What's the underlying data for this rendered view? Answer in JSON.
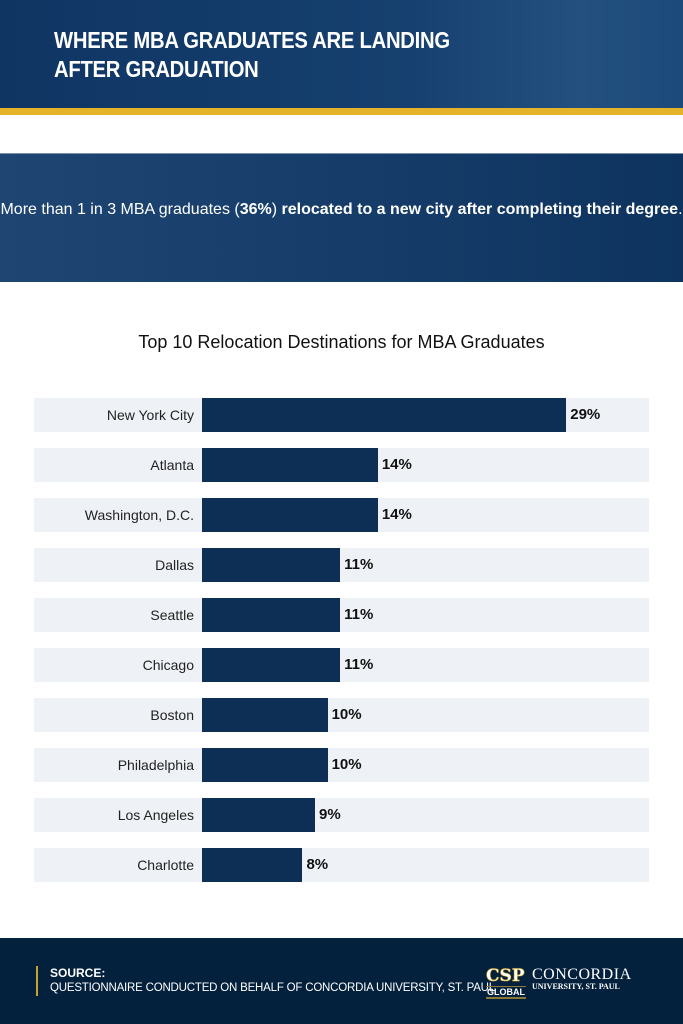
{
  "header": {
    "title_line1": "WHERE MBA GRADUATES ARE LANDING",
    "title_line2": "AFTER GRADUATION"
  },
  "stat": {
    "text_before": "More than 1 in 3 MBA graduates (",
    "highlight": "36%",
    "text_mid": ") ",
    "bold_rest": "relocated to a new city after completing their degree",
    "end": "."
  },
  "chart_data": {
    "type": "bar",
    "orientation": "horizontal",
    "title": "Top 10 Relocation Destinations for MBA Graduates",
    "categories": [
      "New York City",
      "Atlanta",
      "Washington, D.C.",
      "Dallas",
      "Seattle",
      "Chicago",
      "Boston",
      "Philadelphia",
      "Los Angeles",
      "Charlotte"
    ],
    "values": [
      29,
      14,
      14,
      11,
      11,
      11,
      10,
      10,
      9,
      8
    ],
    "labels": [
      "29%",
      "14%",
      "14%",
      "11%",
      "11%",
      "11%",
      "10%",
      "10%",
      "9%",
      "8%"
    ],
    "unit": "%",
    "bar_color": "#0e2f55",
    "row_bg": "#eef2f6"
  },
  "footer": {
    "source_label": "SOURCE:",
    "source_text": "QUESTIONNAIRE CONDUCTED ON BEHALF OF CONCORDIA UNIVERSITY, ST. PAUL",
    "logo": {
      "mark": "CSP",
      "sub": "GLOBAL",
      "name": "CONCORDIA",
      "tagline": "UNIVERSITY, ST. PAUL"
    }
  },
  "colors": {
    "navy": "#0e2f55",
    "gold": "#e5b32a",
    "footer": "#03203c"
  }
}
